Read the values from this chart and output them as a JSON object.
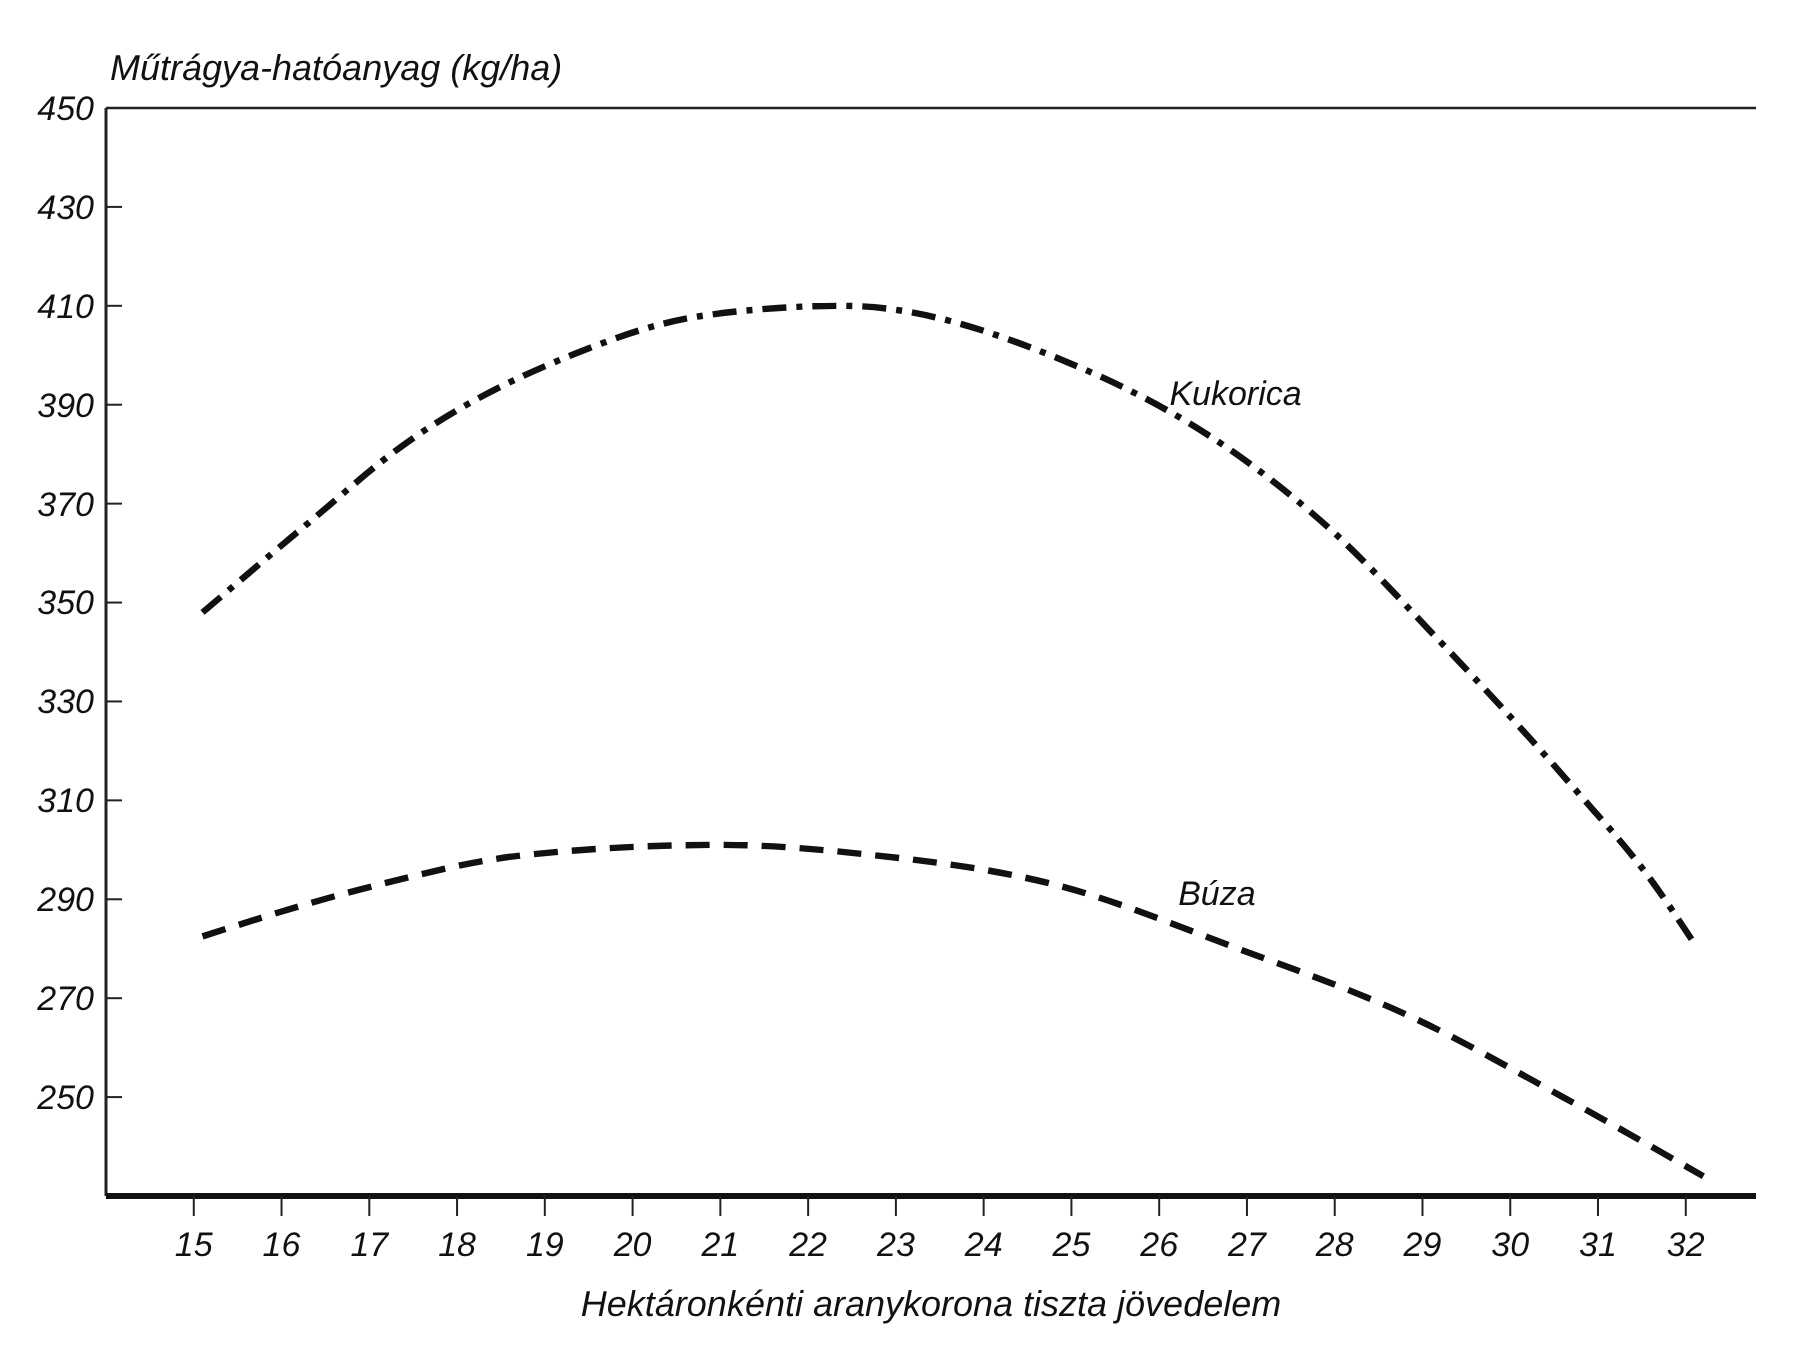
{
  "chart_data": {
    "type": "line",
    "ylabel": "Műtrágya-hatóanyag (kg/ha)",
    "xlabel": "Hektáronkénti aranykorona tiszta jövedelem",
    "xlim": [
      14,
      32.8
    ],
    "xticks": [
      15,
      16,
      17,
      18,
      19,
      20,
      21,
      22,
      23,
      24,
      25,
      26,
      27,
      28,
      29,
      30,
      31,
      32
    ],
    "ylim": [
      230,
      450
    ],
    "yticks": [
      250,
      270,
      290,
      310,
      330,
      350,
      370,
      390,
      410,
      430,
      450
    ],
    "grid": false,
    "marker": "none",
    "series": [
      {
        "name": "Kukorica",
        "color": "#111111",
        "line_style": "dashdot",
        "x": [
          15.1,
          16.3,
          17.4,
          19.3,
          20.8,
          22.4,
          24.9,
          26.8,
          28,
          29.1,
          30.7,
          31.6,
          32.1
        ],
        "values": [
          348,
          366,
          382,
          400,
          408,
          410,
          399,
          381,
          364,
          344,
          313,
          294,
          281
        ]
      },
      {
        "name": "Búza",
        "color": "#111111",
        "line_style": "dashed",
        "x": [
          15.1,
          16.9,
          18.8,
          21,
          22.7,
          24.8,
          26.9,
          28.9,
          30.6,
          32.2
        ],
        "values": [
          282.5,
          292,
          299,
          301,
          299,
          293,
          280,
          266,
          250,
          234
        ]
      }
    ]
  }
}
